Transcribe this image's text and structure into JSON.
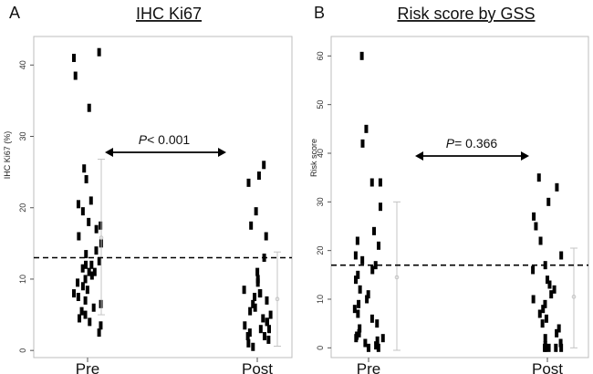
{
  "chart_data": [
    {
      "panel": "A",
      "type": "scatter",
      "title": "IHC Ki67",
      "ylabel": "IHC Ki67 (%)",
      "xlabel": "",
      "categories": [
        "Pre",
        "Post"
      ],
      "ylim": [
        -1,
        44
      ],
      "yticks": [
        0,
        10,
        20,
        30,
        40
      ],
      "threshold": 13,
      "pvalue": {
        "prefix": "P",
        "text": "< 0.001"
      },
      "series": [
        {
          "name": "Pre",
          "values": [
            41,
            41.8,
            38.5,
            34,
            25.5,
            24,
            21,
            20.5,
            19.5,
            18,
            17.5,
            17,
            16,
            15,
            14,
            13.5,
            12.5,
            12,
            12,
            11.5,
            11,
            11,
            10.5,
            10,
            9.5,
            9,
            8.5,
            8,
            7.5,
            7,
            6.5,
            6,
            5.5,
            5,
            4.5,
            4,
            3.5,
            2.5
          ]
        },
        {
          "name": "Post",
          "values": [
            23.5,
            26,
            24.5,
            19.5,
            17.5,
            16,
            13,
            11,
            10,
            9.5,
            8.5,
            8,
            8,
            7.5,
            7,
            6.5,
            6,
            5.5,
            5,
            4.5,
            4,
            4,
            3.5,
            3,
            3,
            2.5,
            2,
            2,
            1.5,
            1,
            0.5
          ]
        }
      ],
      "summary": [
        {
          "group": "Pre",
          "mean": 15.8,
          "lower": 5,
          "upper": 26.8
        },
        {
          "group": "Post",
          "mean": 7.2,
          "lower": 0.6,
          "upper": 13.8
        }
      ]
    },
    {
      "panel": "B",
      "type": "scatter",
      "title": "Risk score by GSS",
      "ylabel": "Risk score",
      "xlabel": "",
      "categories": [
        "Pre",
        "Post"
      ],
      "ylim": [
        -2,
        64
      ],
      "yticks": [
        0,
        10,
        20,
        30,
        40,
        50,
        60
      ],
      "threshold": 17,
      "pvalue": {
        "prefix": "P",
        "text": "= 0.366"
      },
      "series": [
        {
          "name": "Pre",
          "values": [
            60,
            45,
            42,
            34,
            34,
            29,
            24,
            22,
            21,
            19,
            18,
            17,
            16,
            15,
            14,
            12,
            11,
            10,
            9,
            8,
            7,
            6,
            5,
            4,
            3,
            2.5,
            2,
            2,
            1.5,
            1,
            0.5,
            0,
            0
          ]
        },
        {
          "name": "Post",
          "values": [
            35,
            33,
            30,
            27,
            25,
            22,
            19,
            17,
            16,
            14,
            13,
            12,
            11,
            10,
            9,
            8,
            7,
            6,
            5,
            4,
            3,
            2,
            1,
            0.5,
            0,
            0,
            0,
            0,
            0
          ]
        }
      ],
      "summary": [
        {
          "group": "Pre",
          "mean": 14.5,
          "lower": -0.5,
          "upper": 30
        },
        {
          "group": "Post",
          "mean": 10.5,
          "lower": 0,
          "upper": 20.5
        }
      ]
    }
  ]
}
